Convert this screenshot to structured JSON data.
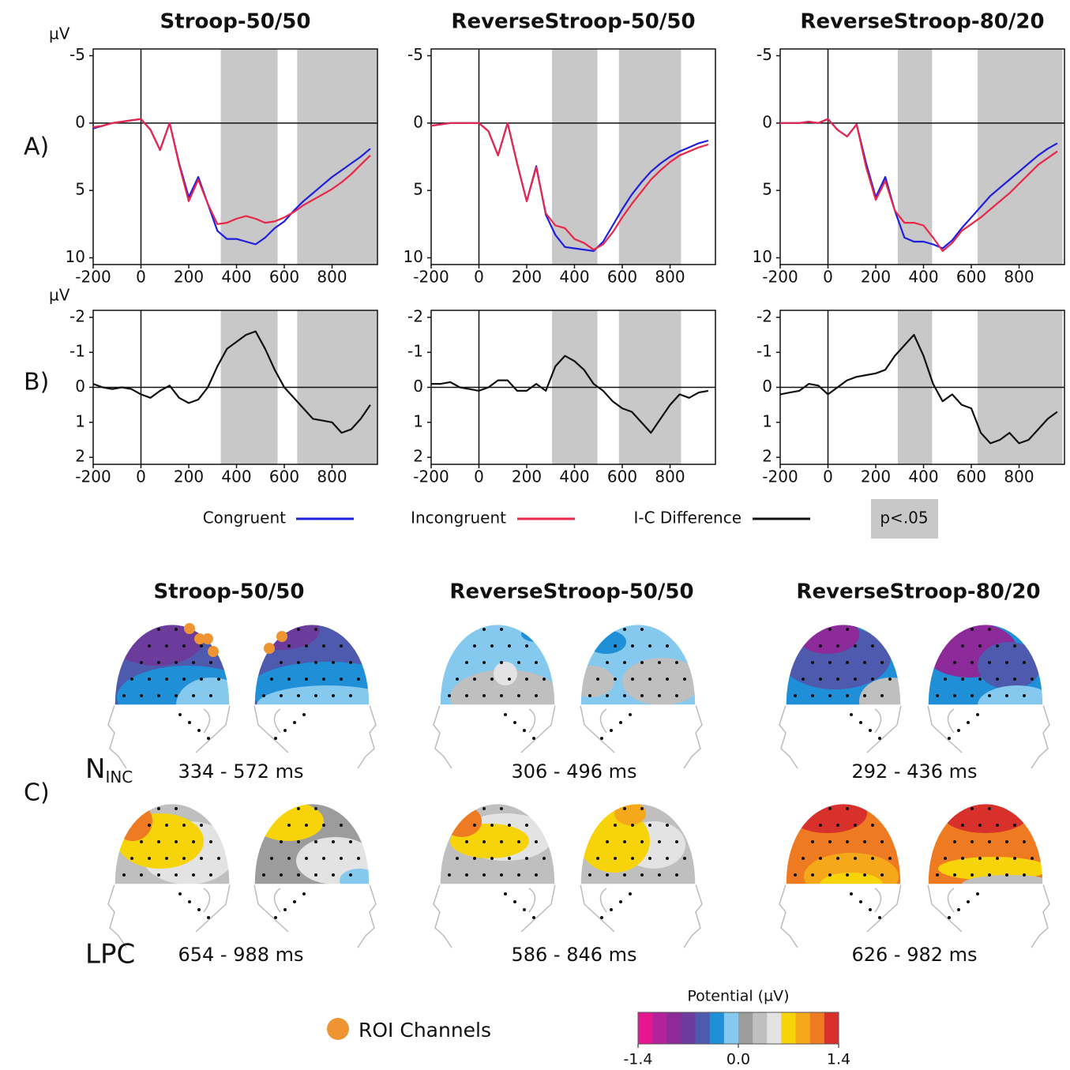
{
  "chart_data": [
    {
      "type": "line",
      "title": "Stroop-50/50",
      "y_label": "µV",
      "x": [
        -200,
        -160,
        -120,
        -80,
        -40,
        0,
        40,
        80,
        120,
        160,
        200,
        240,
        280,
        320,
        360,
        400,
        440,
        480,
        520,
        560,
        600,
        640,
        680,
        720,
        760,
        800,
        840,
        880,
        920,
        960
      ],
      "series": [
        {
          "name": "Congruent",
          "color": "#1f1fe0",
          "values": [
            0.4,
            0.2,
            0.0,
            -0.1,
            -0.2,
            -0.3,
            0.5,
            2.0,
            0.0,
            3.0,
            5.5,
            4.0,
            6.0,
            8.0,
            8.6,
            8.6,
            8.8,
            9.0,
            8.5,
            7.8,
            7.3,
            6.5,
            5.8,
            5.2,
            4.6,
            4.0,
            3.5,
            3.0,
            2.5,
            1.9
          ]
        },
        {
          "name": "Incongruent",
          "color": "#e8274a",
          "values": [
            0.3,
            0.2,
            0.0,
            -0.1,
            -0.2,
            -0.3,
            0.5,
            2.0,
            0.0,
            3.1,
            5.8,
            4.2,
            6.0,
            7.5,
            7.4,
            7.1,
            6.9,
            7.1,
            7.4,
            7.3,
            7.0,
            6.6,
            6.1,
            5.7,
            5.3,
            4.9,
            4.4,
            3.8,
            3.1,
            2.4
          ]
        }
      ],
      "shaded": [
        [
          334,
          572
        ],
        [
          654,
          988
        ]
      ],
      "shade_color": "#c8c8c8",
      "xlim": [
        -200,
        990
      ],
      "xticks": [
        -200,
        0,
        200,
        400,
        600,
        800
      ],
      "ylim": [
        10.5,
        -5.5
      ],
      "yticks": [
        -5,
        0,
        5,
        10
      ]
    },
    {
      "type": "line",
      "title": "ReverseStroop-50/50",
      "x": [
        -200,
        -160,
        -120,
        -80,
        -40,
        0,
        40,
        80,
        120,
        160,
        200,
        240,
        280,
        320,
        360,
        400,
        440,
        480,
        520,
        560,
        600,
        640,
        680,
        720,
        760,
        800,
        840,
        880,
        920,
        960
      ],
      "series": [
        {
          "color": "#1f1fe0",
          "values": [
            0.2,
            0.1,
            0,
            0,
            0,
            0,
            0.6,
            2.4,
            0.0,
            3.0,
            5.8,
            3.2,
            6.8,
            8.3,
            9.2,
            9.3,
            9.4,
            9.5,
            8.8,
            7.6,
            6.4,
            5.3,
            4.4,
            3.6,
            3.0,
            2.5,
            2.1,
            1.8,
            1.5,
            1.3
          ]
        },
        {
          "color": "#e8274a",
          "values": [
            0.2,
            0.1,
            0,
            0,
            0,
            0,
            0.6,
            2.4,
            0.0,
            3.0,
            5.8,
            3.3,
            6.7,
            7.6,
            7.8,
            8.6,
            8.9,
            9.4,
            9.0,
            8.1,
            7.0,
            6.0,
            5.1,
            4.2,
            3.5,
            2.9,
            2.4,
            2.1,
            1.8,
            1.6
          ]
        }
      ],
      "shaded": [
        [
          306,
          496
        ],
        [
          586,
          846
        ]
      ],
      "shade_color": "#c8c8c8",
      "xlim": [
        -200,
        990
      ],
      "xticks": [
        -200,
        0,
        200,
        400,
        600,
        800
      ],
      "ylim": [
        10.5,
        -5.5
      ],
      "yticks": [
        -5,
        0,
        5,
        10
      ]
    },
    {
      "type": "line",
      "title": "ReverseStroop-80/20",
      "x": [
        -200,
        -160,
        -120,
        -80,
        -40,
        0,
        40,
        80,
        120,
        160,
        200,
        240,
        280,
        320,
        360,
        400,
        440,
        480,
        520,
        560,
        600,
        640,
        680,
        720,
        760,
        800,
        840,
        880,
        920,
        960
      ],
      "series": [
        {
          "color": "#1f1fe0",
          "values": [
            0,
            0,
            0,
            -0.1,
            0,
            -0.3,
            0.5,
            1.0,
            0.1,
            3.0,
            5.5,
            4.0,
            6.5,
            8.5,
            8.8,
            8.8,
            9.0,
            9.3,
            8.7,
            7.8,
            7.0,
            6.2,
            5.4,
            4.8,
            4.2,
            3.6,
            3.0,
            2.4,
            1.9,
            1.5
          ]
        },
        {
          "color": "#e8274a",
          "values": [
            0,
            0,
            0,
            -0.1,
            0,
            -0.3,
            0.5,
            1.0,
            0.1,
            3.3,
            5.7,
            4.3,
            6.5,
            7.4,
            7.4,
            7.6,
            8.5,
            9.5,
            8.9,
            8.0,
            7.5,
            7.0,
            6.4,
            5.8,
            5.2,
            4.5,
            3.8,
            3.1,
            2.6,
            2.1
          ]
        }
      ],
      "shaded": [
        [
          292,
          436
        ],
        [
          626,
          982
        ]
      ],
      "shade_color": "#c8c8c8",
      "xlim": [
        -200,
        990
      ],
      "xticks": [
        -200,
        0,
        200,
        400,
        600,
        800
      ],
      "ylim": [
        10.5,
        -5.5
      ],
      "yticks": [
        -5,
        0,
        5,
        10
      ]
    },
    {
      "type": "line",
      "y_label": "µV",
      "x": [
        -200,
        -160,
        -120,
        -80,
        -40,
        0,
        40,
        80,
        120,
        160,
        200,
        240,
        280,
        320,
        360,
        400,
        440,
        480,
        520,
        560,
        600,
        640,
        680,
        720,
        760,
        800,
        840,
        880,
        920,
        960
      ],
      "series": [
        {
          "name": "I-C Difference",
          "color": "#111111",
          "values": [
            -0.1,
            0,
            0.05,
            0,
            0.05,
            0.2,
            0.3,
            0.1,
            -0.05,
            0.3,
            0.45,
            0.35,
            0,
            -0.6,
            -1.1,
            -1.3,
            -1.5,
            -1.6,
            -1.1,
            -0.5,
            0,
            0.3,
            0.6,
            0.9,
            0.95,
            1.0,
            1.3,
            1.2,
            0.9,
            0.5
          ]
        }
      ],
      "shaded": [
        [
          334,
          572
        ],
        [
          654,
          988
        ]
      ],
      "shade_color": "#c8c8c8",
      "xlim": [
        -200,
        990
      ],
      "xticks": [
        -200,
        0,
        200,
        400,
        600,
        800
      ],
      "ylim": [
        2.2,
        -2.2
      ],
      "yticks": [
        -2,
        -1,
        0,
        1,
        2
      ]
    },
    {
      "type": "line",
      "x": [
        -200,
        -160,
        -120,
        -80,
        -40,
        0,
        40,
        80,
        120,
        160,
        200,
        240,
        280,
        320,
        360,
        400,
        440,
        480,
        520,
        560,
        600,
        640,
        680,
        720,
        760,
        800,
        840,
        880,
        920,
        960
      ],
      "series": [
        {
          "color": "#111111",
          "values": [
            -0.1,
            -0.1,
            -0.15,
            0,
            0.05,
            0.1,
            0,
            -0.2,
            -0.2,
            0.1,
            0.1,
            -0.1,
            0.1,
            -0.6,
            -0.9,
            -0.75,
            -0.5,
            -0.1,
            0.1,
            0.4,
            0.6,
            0.7,
            1.0,
            1.3,
            0.9,
            0.5,
            0.2,
            0.3,
            0.15,
            0.1
          ]
        }
      ],
      "shaded": [
        [
          306,
          496
        ],
        [
          586,
          846
        ]
      ],
      "shade_color": "#c8c8c8",
      "xlim": [
        -200,
        990
      ],
      "xticks": [
        -200,
        0,
        200,
        400,
        600,
        800
      ],
      "ylim": [
        2.2,
        -2.2
      ],
      "yticks": [
        -2,
        -1,
        0,
        1,
        2
      ]
    },
    {
      "type": "line",
      "x": [
        -200,
        -160,
        -120,
        -80,
        -40,
        0,
        40,
        80,
        120,
        160,
        200,
        240,
        280,
        320,
        360,
        400,
        440,
        480,
        520,
        560,
        600,
        640,
        680,
        720,
        760,
        800,
        840,
        880,
        920,
        960
      ],
      "series": [
        {
          "color": "#111111",
          "values": [
            0.2,
            0.15,
            0.1,
            -0.1,
            -0.05,
            0.2,
            0,
            -0.2,
            -0.3,
            -0.35,
            -0.4,
            -0.5,
            -0.9,
            -1.2,
            -1.5,
            -0.9,
            -0.1,
            0.4,
            0.2,
            0.5,
            0.6,
            1.3,
            1.6,
            1.5,
            1.3,
            1.6,
            1.5,
            1.2,
            0.9,
            0.7
          ]
        }
      ],
      "shaded": [
        [
          292,
          436
        ],
        [
          626,
          982
        ]
      ],
      "shade_color": "#c8c8c8",
      "xlim": [
        -200,
        990
      ],
      "xticks": [
        -200,
        0,
        200,
        400,
        600,
        800
      ],
      "ylim": [
        2.2,
        -2.2
      ],
      "yticks": [
        -2,
        -1,
        0,
        1,
        2
      ]
    }
  ],
  "panels": [
    "A)",
    "B)",
    "C)"
  ],
  "legend": {
    "shade_label": "p<.05"
  },
  "topomaps": {
    "rows": [
      {
        "main": "N",
        "sub": "INC"
      },
      {
        "main": "LPC"
      }
    ],
    "windows": [
      [
        "334 - 572 ms",
        "306 - 496 ms",
        "292 - 436 ms"
      ],
      [
        "654 - 988 ms",
        "586 - 846 ms",
        "626 - 982 ms"
      ]
    ],
    "roi_label": "ROI Channels",
    "roi_color": "#ee9433"
  },
  "colorbar": {
    "title": "Potential (µV)",
    "colors": [
      "#e5168e",
      "#b4229a",
      "#8b2a98",
      "#6c3c9c",
      "#4e5aae",
      "#1f8fd8",
      "#85c9ef",
      "#9c9c9c",
      "#bfbfbf",
      "#e3e3e3",
      "#f7d40a",
      "#f4a81a",
      "#ee7a22",
      "#d8302a"
    ],
    "lim": [
      -1.4,
      1.4
    ],
    "ticks": [
      -1.4,
      {
        "value": 0,
        "label": "0.0"
      },
      1.4
    ]
  }
}
